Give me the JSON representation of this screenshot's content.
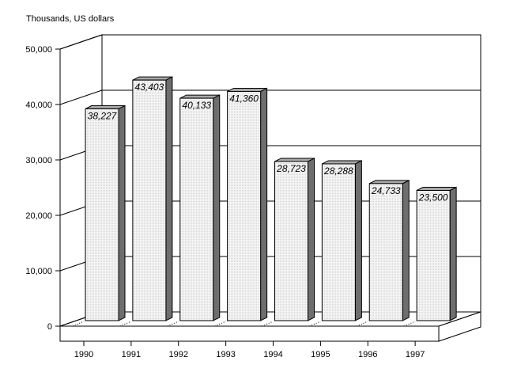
{
  "chart_data": {
    "type": "bar",
    "title": "",
    "ylabel": "Thousands, US dollars",
    "xlabel": "",
    "categories": [
      "1990",
      "1991",
      "1992",
      "1993",
      "1994",
      "1995",
      "1996",
      "1997"
    ],
    "values": [
      38227,
      43403,
      40133,
      41360,
      28723,
      28288,
      24733,
      23500
    ],
    "value_labels": [
      "38,227",
      "43,403",
      "40,133",
      "41,360",
      "28,723",
      "28,288",
      "24,733",
      "23,500"
    ],
    "ylim": [
      0,
      50000
    ],
    "yticks": [
      0,
      10000,
      20000,
      30000,
      40000,
      50000
    ],
    "ytick_labels": [
      "0",
      "10,000",
      "20,000",
      "30,000",
      "40,000",
      "50,000"
    ],
    "grid": true,
    "style": "3d",
    "colors": {
      "bar_face": "#ececec",
      "bar_side": "#6e6e6e",
      "bar_top": "#a8a8a8"
    }
  }
}
